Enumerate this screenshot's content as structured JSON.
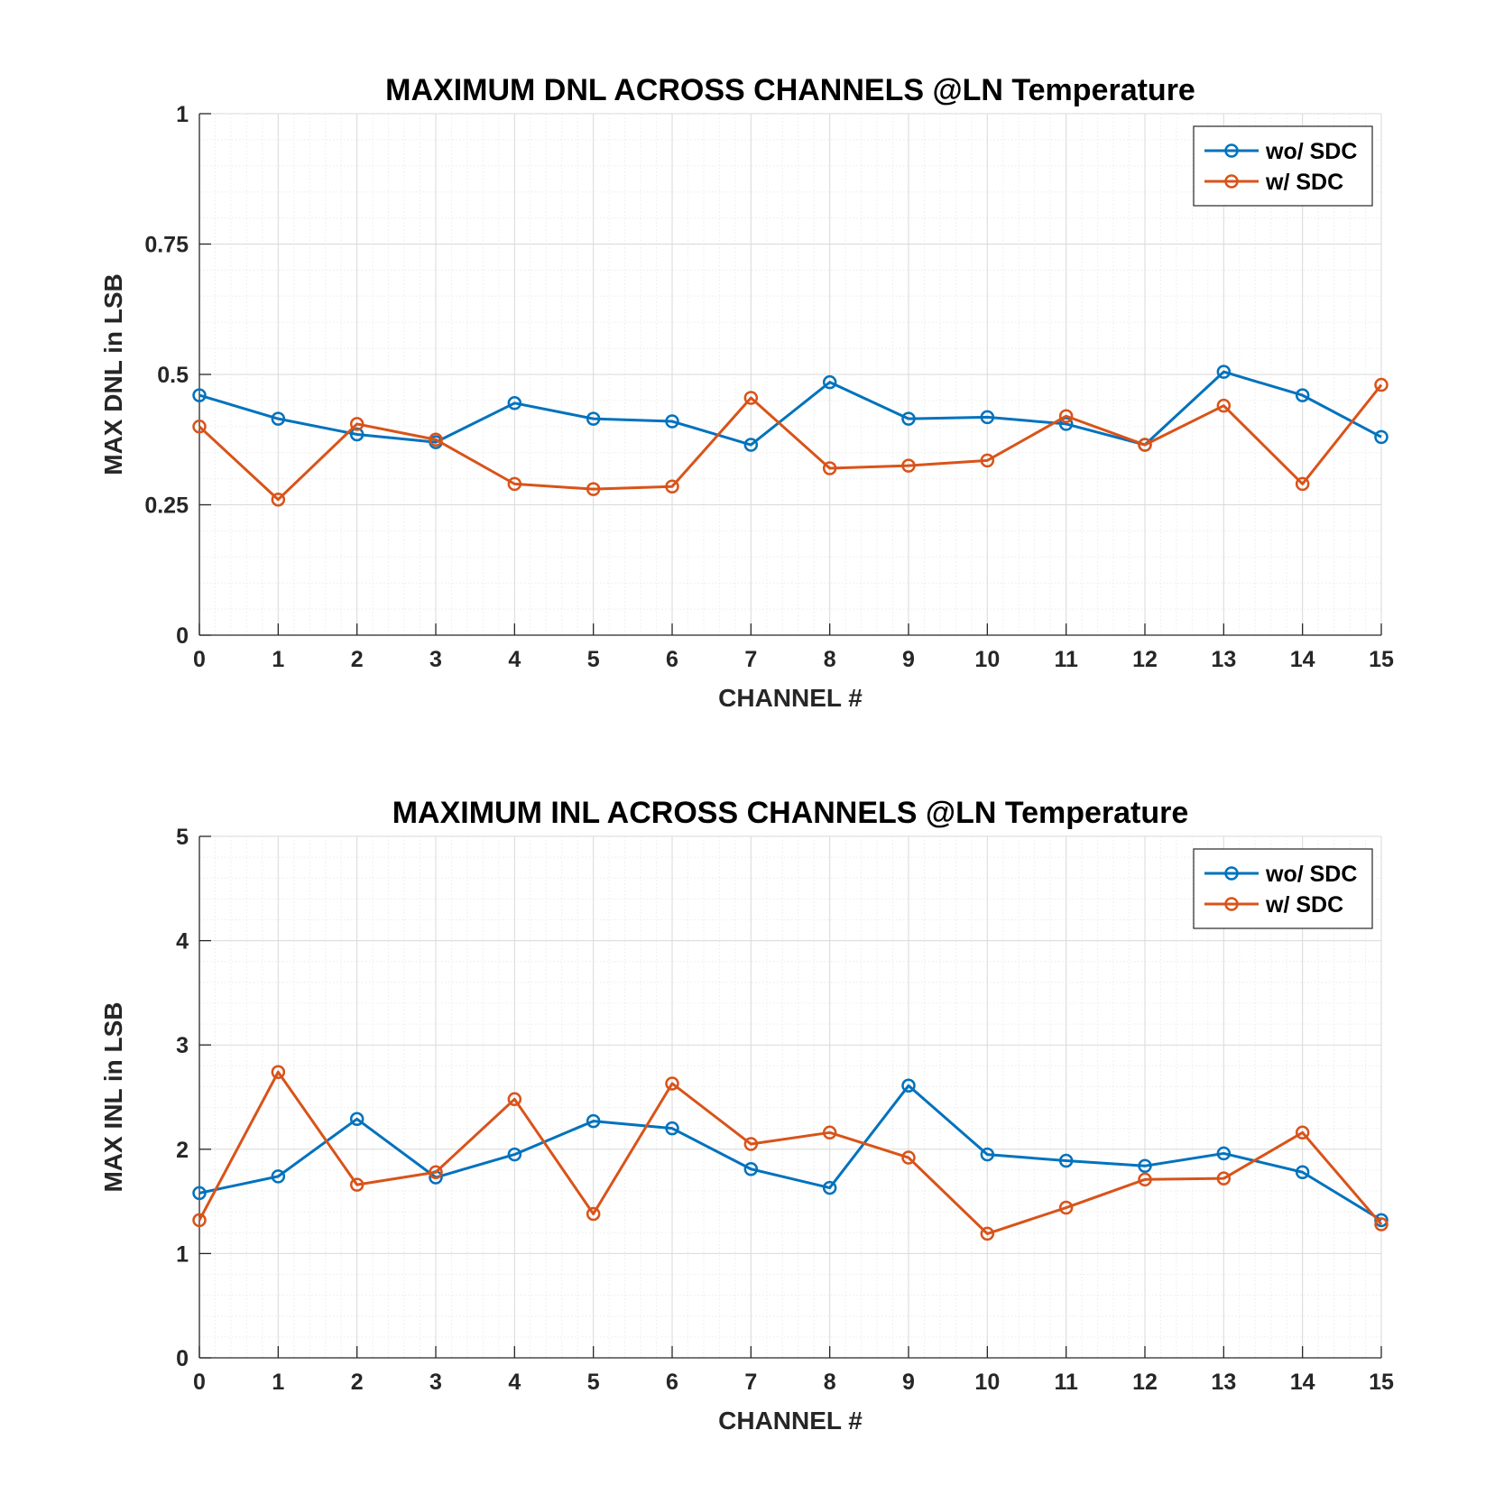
{
  "chart_data": [
    {
      "type": "line",
      "title": "MAXIMUM DNL ACROSS CHANNELS @LN Temperature",
      "xlabel": "CHANNEL #",
      "ylabel": "MAX DNL in LSB",
      "x": [
        0,
        1,
        2,
        3,
        4,
        5,
        6,
        7,
        8,
        9,
        10,
        11,
        12,
        13,
        14,
        15
      ],
      "xlim": [
        0,
        15
      ],
      "ylim": [
        0,
        1
      ],
      "xticks": [
        "0",
        "1",
        "2",
        "3",
        "4",
        "5",
        "6",
        "7",
        "8",
        "9",
        "10",
        "11",
        "12",
        "13",
        "14",
        "15"
      ],
      "yticks": [
        0,
        0.25,
        0.5,
        0.75,
        1
      ],
      "ytick_labels": [
        "0",
        "0.25",
        "0.5",
        "0.75",
        "1"
      ],
      "grid": true,
      "minor_grid": true,
      "legend_position": "top-right",
      "series": [
        {
          "name": "wo/ SDC",
          "color": "#0072BD",
          "values": [
            0.46,
            0.415,
            0.385,
            0.37,
            0.445,
            0.415,
            0.41,
            0.365,
            0.485,
            0.415,
            0.418,
            0.405,
            0.365,
            0.505,
            0.46,
            0.38
          ]
        },
        {
          "name": "w/ SDC",
          "color": "#D95319",
          "values": [
            0.4,
            0.26,
            0.405,
            0.375,
            0.29,
            0.28,
            0.285,
            0.455,
            0.32,
            0.325,
            0.335,
            0.42,
            0.365,
            0.44,
            0.29,
            0.48
          ]
        }
      ]
    },
    {
      "type": "line",
      "title": "MAXIMUM INL ACROSS CHANNELS @LN Temperature",
      "xlabel": "CHANNEL #",
      "ylabel": "MAX INL in LSB",
      "x": [
        0,
        1,
        2,
        3,
        4,
        5,
        6,
        7,
        8,
        9,
        10,
        11,
        12,
        13,
        14,
        15
      ],
      "xlim": [
        0,
        15
      ],
      "ylim": [
        0,
        5
      ],
      "xticks": [
        "0",
        "1",
        "2",
        "3",
        "4",
        "5",
        "6",
        "7",
        "8",
        "9",
        "10",
        "11",
        "12",
        "13",
        "14",
        "15"
      ],
      "yticks": [
        0,
        1,
        2,
        3,
        4,
        5
      ],
      "ytick_labels": [
        "0",
        "1",
        "2",
        "3",
        "4",
        "5"
      ],
      "grid": true,
      "minor_grid": true,
      "legend_position": "top-right",
      "series": [
        {
          "name": "wo/ SDC",
          "color": "#0072BD",
          "values": [
            1.58,
            1.74,
            2.29,
            1.73,
            1.95,
            2.27,
            2.2,
            1.81,
            1.63,
            2.61,
            1.95,
            1.89,
            1.84,
            1.96,
            1.78,
            1.32
          ]
        },
        {
          "name": "w/ SDC",
          "color": "#D95319",
          "values": [
            1.32,
            2.74,
            1.66,
            1.78,
            2.48,
            1.38,
            2.63,
            2.05,
            2.16,
            1.92,
            1.19,
            1.44,
            1.71,
            1.72,
            2.16,
            1.28
          ]
        }
      ]
    }
  ]
}
